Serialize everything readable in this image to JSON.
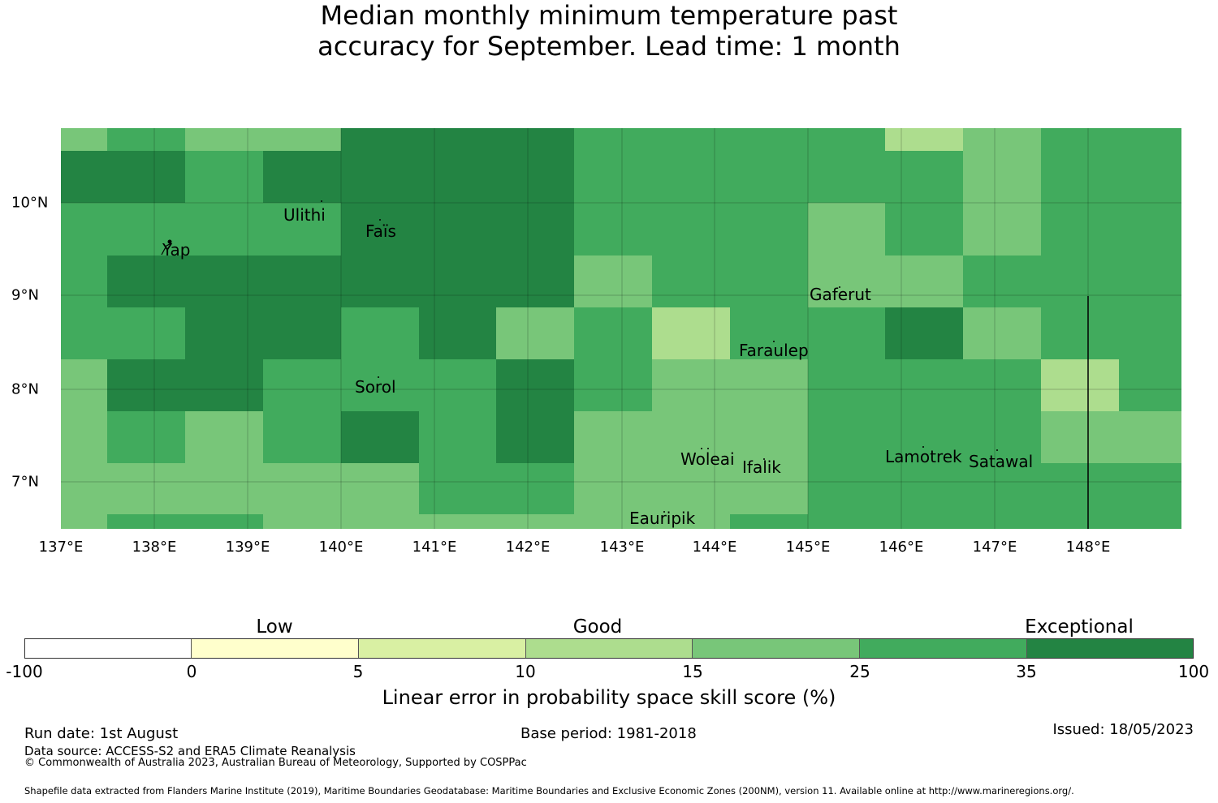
{
  "title": {
    "line1": "Median monthly minimum temperature past",
    "line2": "accuracy for September. Lead time: 1 month"
  },
  "map": {
    "lon_range": [
      137.0,
      149.0
    ],
    "lat_range": [
      6.5,
      10.8
    ],
    "grid_lines": true,
    "x_ticks": [
      "137°E",
      "138°E",
      "139°E",
      "140°E",
      "141°E",
      "142°E",
      "143°E",
      "144°E",
      "145°E",
      "146°E",
      "147°E",
      "148°E"
    ],
    "y_ticks": [
      "10°N",
      "9°N",
      "8°N",
      "7°N"
    ],
    "places": [
      "Ulithi",
      "Faïs",
      "Yap",
      "Gaferut",
      "Faraulep",
      "Sorol",
      "Woleai",
      "Ifalik",
      "Lamotrek",
      "Satawal",
      "Eauripik"
    ]
  },
  "colorbar": {
    "categories": [
      "Low",
      "Good",
      "Exceptional"
    ],
    "ticks": [
      "-100",
      "0",
      "5",
      "10",
      "15",
      "25",
      "35",
      "100"
    ],
    "colors": [
      "#ffffff",
      "#ffffcc",
      "#d9f0a3",
      "#addd8e",
      "#78c679",
      "#41ab5d",
      "#238443"
    ],
    "label": "Linear error in probability space skill score (%)"
  },
  "footer": {
    "run_date": "Run date: 1st August",
    "base_period": "Base period: 1981-2018",
    "issued": "Issued: 18/05/2023",
    "data_source": "Data source: ACCESS-S2 and ERA5 Climate Reanalysis",
    "copyright": "© Commonwealth of Australia 2023, Australian Bureau of Meteorology, Supported by COSPPac",
    "shapefile": "Shapefile data extracted from Flanders Marine Institute (2019), Maritime Boundaries Geodatabase: Maritime Boundaries and Exclusive Economic Zones (200NM), version 11. Available online at http://www.marineregions.org/."
  }
}
